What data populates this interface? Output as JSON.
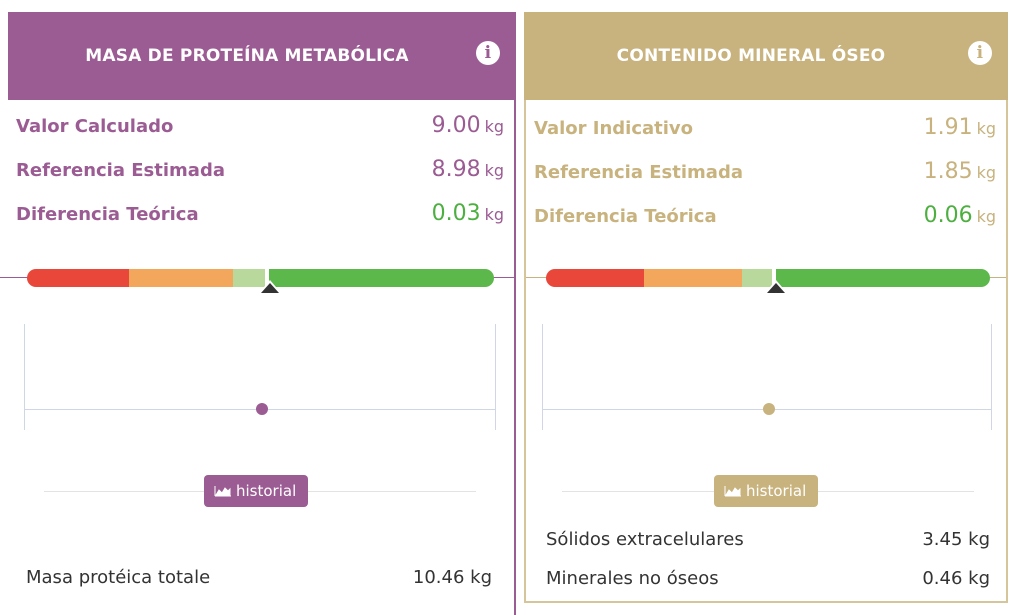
{
  "panels": {
    "protein": {
      "title": "MASA DE PROTEÍNA METABÓLICA",
      "accent_color": "#9b5b93",
      "info_icon": "info-icon",
      "metrics": [
        {
          "label": "Valor Calculado",
          "value": "9.00",
          "unit": "kg"
        },
        {
          "label": "Referencia Estimada",
          "value": "8.98",
          "unit": "kg"
        },
        {
          "label": "Diferencia Teórica",
          "value": "0.03",
          "unit": "kg"
        }
      ],
      "history_button": "historial",
      "bottom_items": [
        {
          "label": "Masa protéica totale",
          "value": "10.46 kg"
        }
      ]
    },
    "mineral": {
      "title": "CONTENIDO MINERAL ÓSEO",
      "accent_color": "#c8b27d",
      "info_icon": "info-icon",
      "metrics": [
        {
          "label": "Valor Indicativo",
          "value": "1.91",
          "unit": "kg"
        },
        {
          "label": "Referencia Estimada",
          "value": "1.85",
          "unit": "kg"
        },
        {
          "label": "Diferencia Teórica",
          "value": "0.06",
          "unit": "kg"
        }
      ],
      "history_button": "historial",
      "bottom_items": [
        {
          "label": "Sólidos extracelulares",
          "value": "3.45 kg"
        },
        {
          "label": "Minerales no óseos",
          "value": "0.46 kg"
        }
      ]
    }
  },
  "colors": {
    "gauge_red": "#e8473a",
    "gauge_orange": "#f3a75c",
    "gauge_light_green": "#b9d89b",
    "gauge_green": "#5cb84a",
    "difference_green": "#4caf3f"
  }
}
